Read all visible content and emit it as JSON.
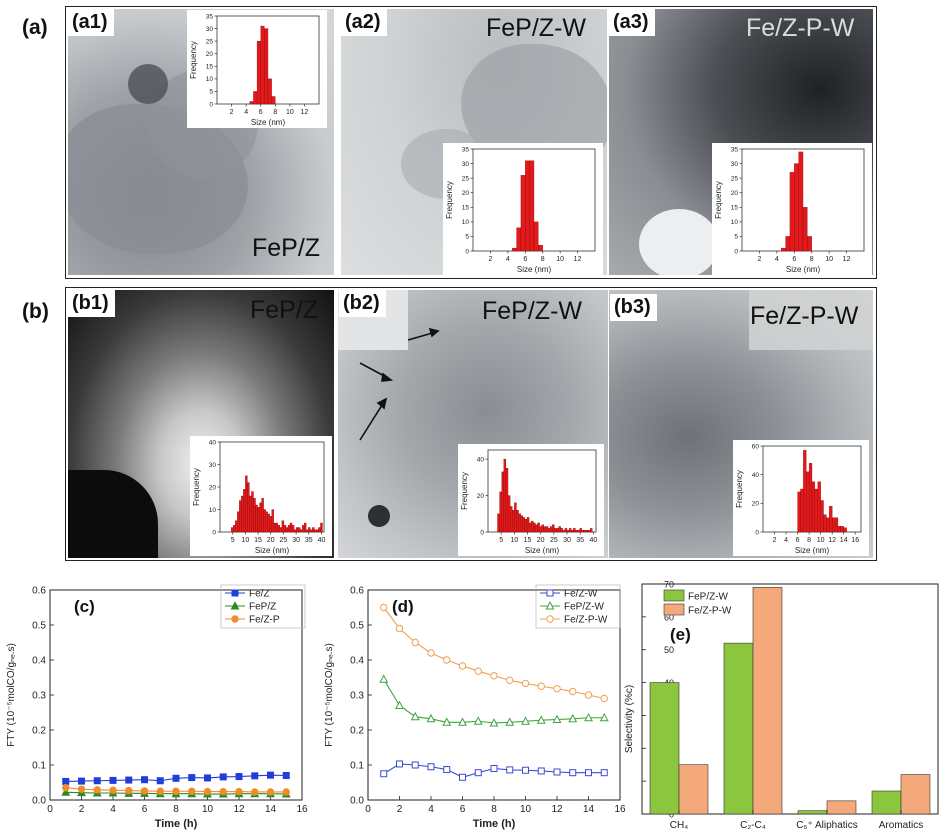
{
  "panel_letters": {
    "a": "(a)",
    "b": "(b)"
  },
  "panels": {
    "a1": {
      "label": "(a1)",
      "sample": "FeP/Z"
    },
    "a2": {
      "label": "(a2)",
      "sample": "FeP/Z-W"
    },
    "a3": {
      "label": "(a3)",
      "sample": "Fe/Z-P-W"
    },
    "b1": {
      "label": "(b1)",
      "sample": "FeP/Z"
    },
    "b2": {
      "label": "(b2)",
      "sample": "FeP/Z-W"
    },
    "b3": {
      "label": "(b3)",
      "sample": "Fe/Z-P-W"
    }
  },
  "colors": {
    "hist_bar": "#e31a1c",
    "green_bar": "#8cc63f",
    "orange_bar": "#f4a97a",
    "blue": "#1f3fd8",
    "green": "#2e8b22",
    "orange": "#f28c28",
    "blue_open": "#3b4bd0",
    "green_open": "#3fa33f",
    "orange_open": "#f0a050"
  },
  "chart_data": [
    {
      "id": "hist_a1",
      "type": "bar",
      "xlabel": "Size (nm)",
      "ylabel": "Frequency",
      "xlim": [
        0,
        14
      ],
      "ylim": [
        0,
        35
      ],
      "xticks": [
        2,
        4,
        6,
        8,
        10,
        12
      ],
      "yticks": [
        0,
        5,
        10,
        15,
        20,
        25,
        30,
        35
      ],
      "bin_width": 0.5,
      "bins": [
        [
          4.5,
          1
        ],
        [
          5.0,
          5
        ],
        [
          5.5,
          25
        ],
        [
          6.0,
          31
        ],
        [
          6.5,
          30
        ],
        [
          7.0,
          10
        ],
        [
          7.5,
          3
        ]
      ]
    },
    {
      "id": "hist_a2",
      "type": "bar",
      "xlabel": "Size (nm)",
      "ylabel": "Frequency",
      "xlim": [
        0,
        14
      ],
      "ylim": [
        0,
        35
      ],
      "xticks": [
        2,
        4,
        6,
        8,
        10,
        12
      ],
      "yticks": [
        0,
        5,
        10,
        15,
        20,
        25,
        30,
        35
      ],
      "bin_width": 0.5,
      "bins": [
        [
          4.5,
          1
        ],
        [
          5.0,
          8
        ],
        [
          5.5,
          26
        ],
        [
          6.0,
          31
        ],
        [
          6.5,
          31
        ],
        [
          7.0,
          10
        ],
        [
          7.5,
          2
        ]
      ]
    },
    {
      "id": "hist_a3",
      "type": "bar",
      "xlabel": "Size (nm)",
      "ylabel": "Frequency",
      "xlim": [
        0,
        14
      ],
      "ylim": [
        0,
        35
      ],
      "xticks": [
        2,
        4,
        6,
        8,
        10,
        12
      ],
      "yticks": [
        0,
        5,
        10,
        15,
        20,
        25,
        30,
        35
      ],
      "bin_width": 0.5,
      "bins": [
        [
          4.5,
          1
        ],
        [
          5.0,
          5
        ],
        [
          5.5,
          27
        ],
        [
          6.0,
          30
        ],
        [
          6.5,
          34
        ],
        [
          7.0,
          15
        ],
        [
          7.5,
          5
        ]
      ]
    },
    {
      "id": "hist_b1",
      "type": "bar",
      "xlabel": "Size (nm)",
      "ylabel": "Frequency",
      "xlim": [
        0,
        41
      ],
      "ylim": [
        0,
        40
      ],
      "xticks": [
        5,
        10,
        15,
        20,
        25,
        30,
        35,
        40
      ],
      "yticks": [
        0,
        10,
        20,
        30,
        40
      ],
      "bin_width": 0.8,
      "bins": [
        [
          4.4,
          2
        ],
        [
          5.2,
          3
        ],
        [
          6.0,
          5
        ],
        [
          6.8,
          9
        ],
        [
          7.6,
          14
        ],
        [
          8.4,
          16
        ],
        [
          9.2,
          19
        ],
        [
          10.0,
          25
        ],
        [
          10.8,
          22
        ],
        [
          11.6,
          16
        ],
        [
          12.4,
          18
        ],
        [
          13.2,
          15
        ],
        [
          14.0,
          12
        ],
        [
          14.8,
          11
        ],
        [
          15.6,
          13
        ],
        [
          16.4,
          15
        ],
        [
          17.2,
          10
        ],
        [
          18.0,
          9
        ],
        [
          18.8,
          8
        ],
        [
          19.6,
          7
        ],
        [
          20.4,
          10
        ],
        [
          21.2,
          4
        ],
        [
          22.0,
          4
        ],
        [
          22.8,
          3
        ],
        [
          23.6,
          2
        ],
        [
          24.4,
          5
        ],
        [
          25.2,
          3
        ],
        [
          26.0,
          2
        ],
        [
          26.8,
          3
        ],
        [
          27.6,
          4
        ],
        [
          28.4,
          3
        ],
        [
          29.2,
          1
        ],
        [
          30.0,
          2
        ],
        [
          30.8,
          2
        ],
        [
          31.6,
          1
        ],
        [
          32.4,
          3
        ],
        [
          33.2,
          4
        ],
        [
          34.0,
          1
        ],
        [
          34.8,
          2
        ],
        [
          35.6,
          1
        ],
        [
          36.4,
          2
        ],
        [
          37.2,
          1
        ],
        [
          38.0,
          1
        ],
        [
          38.8,
          2
        ],
        [
          39.6,
          4
        ]
      ]
    },
    {
      "id": "hist_b2",
      "type": "bar",
      "xlabel": "Size (nm)",
      "ylabel": "Frequency",
      "xlim": [
        0,
        41
      ],
      "ylim": [
        0,
        45
      ],
      "xticks": [
        5,
        10,
        15,
        20,
        25,
        30,
        35,
        40
      ],
      "yticks": [
        0,
        20,
        40
      ],
      "bin_width": 0.8,
      "bins": [
        [
          3.6,
          10
        ],
        [
          4.4,
          22
        ],
        [
          5.2,
          33
        ],
        [
          6.0,
          40
        ],
        [
          6.8,
          35
        ],
        [
          7.6,
          20
        ],
        [
          8.4,
          14
        ],
        [
          9.2,
          12
        ],
        [
          10.0,
          16
        ],
        [
          10.8,
          12
        ],
        [
          11.6,
          10
        ],
        [
          12.4,
          9
        ],
        [
          13.2,
          8
        ],
        [
          14.0,
          7
        ],
        [
          14.8,
          8
        ],
        [
          15.6,
          5
        ],
        [
          16.4,
          6
        ],
        [
          17.2,
          5
        ],
        [
          18.0,
          4
        ],
        [
          18.8,
          5
        ],
        [
          19.6,
          3
        ],
        [
          20.4,
          4
        ],
        [
          21.2,
          3
        ],
        [
          22.0,
          3
        ],
        [
          22.8,
          2
        ],
        [
          23.6,
          3
        ],
        [
          24.4,
          4
        ],
        [
          25.2,
          2
        ],
        [
          26.0,
          2
        ],
        [
          26.8,
          3
        ],
        [
          27.6,
          2
        ],
        [
          28.4,
          1
        ],
        [
          29.2,
          2
        ],
        [
          30.0,
          1
        ],
        [
          30.8,
          2
        ],
        [
          31.6,
          1
        ],
        [
          32.4,
          2
        ],
        [
          33.2,
          1
        ],
        [
          34.0,
          1
        ],
        [
          34.8,
          2
        ],
        [
          35.6,
          1
        ],
        [
          36.4,
          1
        ],
        [
          37.2,
          1
        ],
        [
          38.0,
          1
        ],
        [
          38.8,
          2
        ]
      ]
    },
    {
      "id": "hist_b3",
      "type": "bar",
      "xlabel": "Size (nm)",
      "ylabel": "Frequency",
      "xlim": [
        0,
        17
      ],
      "ylim": [
        0,
        60
      ],
      "xticks": [
        2,
        4,
        6,
        8,
        10,
        12,
        14,
        16
      ],
      "yticks": [
        0,
        20,
        40,
        60
      ],
      "bin_width": 0.5,
      "bins": [
        [
          6.0,
          28
        ],
        [
          6.5,
          30
        ],
        [
          7.0,
          57
        ],
        [
          7.5,
          42
        ],
        [
          8.0,
          48
        ],
        [
          8.5,
          35
        ],
        [
          9.0,
          30
        ],
        [
          9.5,
          35
        ],
        [
          10.0,
          22
        ],
        [
          10.5,
          12
        ],
        [
          11.0,
          10
        ],
        [
          11.5,
          18
        ],
        [
          12.0,
          10
        ],
        [
          12.5,
          10
        ],
        [
          13.0,
          4
        ],
        [
          13.5,
          4
        ],
        [
          14.0,
          3
        ]
      ]
    },
    {
      "id": "c",
      "panel_label": "(c)",
      "type": "line",
      "xlabel": "Time (h)",
      "ylabel": "FTY (10⁻⁵molCO/gₙₑ.s)",
      "xlim": [
        0,
        16
      ],
      "ylim": [
        0,
        0.6
      ],
      "xticks": [
        0,
        2,
        4,
        6,
        8,
        10,
        12,
        14,
        16
      ],
      "yticks": [
        0.0,
        0.1,
        0.2,
        0.3,
        0.4,
        0.5,
        0.6
      ],
      "x": [
        1,
        2,
        3,
        4,
        5,
        6,
        7,
        8,
        9,
        10,
        11,
        12,
        13,
        14,
        15
      ],
      "series": [
        {
          "name": "Fe/Z",
          "marker": "square",
          "color": "#1f3fd8",
          "values": [
            0.053,
            0.054,
            0.055,
            0.056,
            0.057,
            0.058,
            0.055,
            0.062,
            0.064,
            0.063,
            0.066,
            0.067,
            0.069,
            0.071,
            0.07
          ]
        },
        {
          "name": "FeP/Z",
          "marker": "triangle",
          "color": "#2e8b22",
          "values": [
            0.022,
            0.021,
            0.02,
            0.02,
            0.019,
            0.019,
            0.018,
            0.018,
            0.018,
            0.017,
            0.017,
            0.018,
            0.018,
            0.018,
            0.017
          ]
        },
        {
          "name": "Fe/Z-P",
          "marker": "circle",
          "color": "#f28c28",
          "values": [
            0.035,
            0.031,
            0.029,
            0.028,
            0.027,
            0.026,
            0.025,
            0.025,
            0.025,
            0.024,
            0.024,
            0.024,
            0.023,
            0.023,
            0.023
          ]
        }
      ]
    },
    {
      "id": "d",
      "panel_label": "(d)",
      "type": "line",
      "xlabel": "Time (h)",
      "ylabel": "FTY (10⁻⁵molCO/gₙₑ.s)",
      "xlim": [
        0,
        16
      ],
      "ylim": [
        0,
        0.6
      ],
      "xticks": [
        0,
        2,
        4,
        6,
        8,
        10,
        12,
        14,
        16
      ],
      "yticks": [
        0.0,
        0.1,
        0.2,
        0.3,
        0.4,
        0.5,
        0.6
      ],
      "x": [
        1,
        2,
        3,
        4,
        5,
        6,
        7,
        8,
        9,
        10,
        11,
        12,
        13,
        14,
        15
      ],
      "series": [
        {
          "name": "Fe/Z-W",
          "marker": "square-open",
          "color": "#3b4bd0",
          "values": [
            0.075,
            0.103,
            0.1,
            0.095,
            0.087,
            0.065,
            0.078,
            0.09,
            0.086,
            0.085,
            0.083,
            0.08,
            0.078,
            0.078,
            0.078
          ]
        },
        {
          "name": "FeP/Z-W",
          "marker": "triangle-open",
          "color": "#3fa33f",
          "values": [
            0.345,
            0.27,
            0.238,
            0.232,
            0.222,
            0.222,
            0.225,
            0.22,
            0.222,
            0.225,
            0.228,
            0.23,
            0.232,
            0.235,
            0.235
          ]
        },
        {
          "name": "Fe/Z-P-W",
          "marker": "circle-open",
          "color": "#f0a050",
          "values": [
            0.55,
            0.49,
            0.45,
            0.42,
            0.4,
            0.383,
            0.368,
            0.355,
            0.342,
            0.333,
            0.325,
            0.318,
            0.31,
            0.3,
            0.29
          ]
        }
      ]
    },
    {
      "id": "e",
      "panel_label": "(e)",
      "type": "bar",
      "xlabel": "",
      "ylabel": "Selectivity (%c)",
      "ylim": [
        0,
        70
      ],
      "yticks": [
        0,
        10,
        20,
        30,
        40,
        50,
        60,
        70
      ],
      "categories": [
        "CH₄",
        "C₂-C₄",
        "C₅⁺ Aliphatics",
        "Aromatics"
      ],
      "series": [
        {
          "name": "FeP/Z-W",
          "color": "#8cc63f",
          "values": [
            40,
            52,
            1,
            7
          ]
        },
        {
          "name": "Fe/Z-P-W",
          "color": "#f4a97a",
          "values": [
            15,
            69,
            4,
            12
          ]
        }
      ]
    }
  ]
}
